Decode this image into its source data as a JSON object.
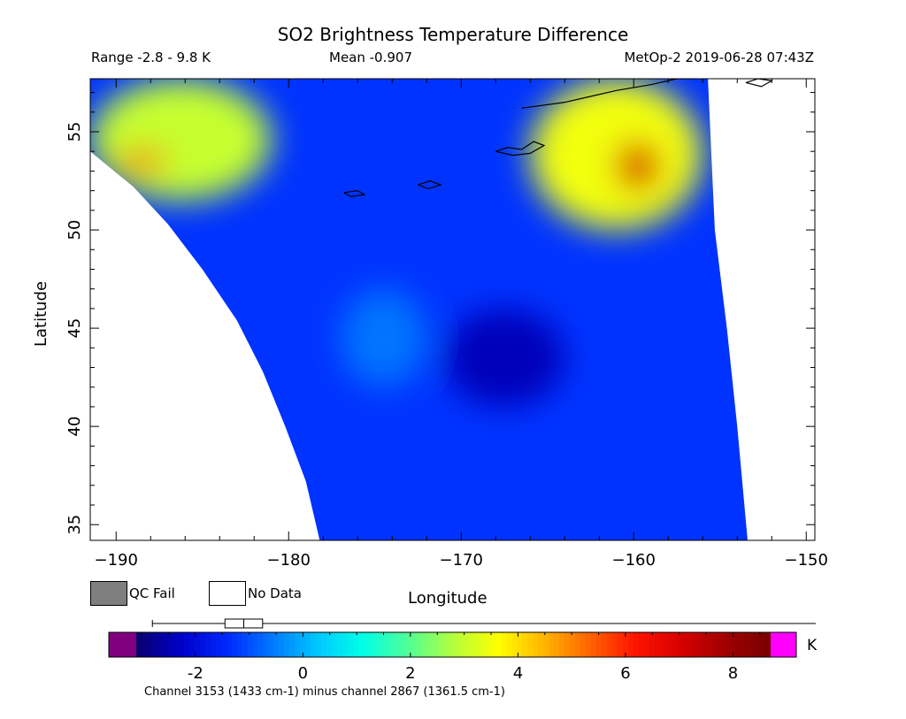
{
  "header": {
    "range": "Range -2.8 - 9.8 K",
    "mean": "Mean -0.907",
    "satellite": "MetOp-2 2019-06-28 07:43Z"
  },
  "legend": {
    "qc_fail": "QC Fail",
    "no_data": "No Data",
    "qc_color": "#7f7f7f",
    "nodata_color": "#ffffff"
  },
  "colorbar": {
    "unit": "K",
    "min": -3.1,
    "max": 8.7,
    "ticks": [
      "-2",
      "0",
      "2",
      "4",
      "6",
      "8"
    ],
    "tick_values": [
      -2,
      0,
      2,
      4,
      6,
      8
    ],
    "underflow_color": "#800080",
    "overflow_color": "#ff00ff",
    "colors": [
      "#0a006e",
      "#0000c8",
      "#0028ff",
      "#0078ff",
      "#00c8ff",
      "#00ffe6",
      "#50ff96",
      "#b4ff3c",
      "#ffff00",
      "#ffb400",
      "#ff6400",
      "#ff1400",
      "#d70000",
      "#a00000",
      "#780000"
    ],
    "boxplot": {
      "min": -2.8,
      "q1": -1.45,
      "median": -1.1,
      "q3": -0.75,
      "max": 9.8
    }
  },
  "footnote": "Channel 3153 (1433 cm-1) minus channel 2867 (1361.5 cm-1)",
  "chart_data": {
    "type": "heatmap",
    "title": "SO2 Brightness Temperature Difference",
    "xlabel": "Longitude",
    "ylabel": "Latitude",
    "xlim": [
      -191.5,
      -149.5
    ],
    "ylim": [
      34.2,
      57.7
    ],
    "xticks": [
      -190,
      -180,
      -170,
      -160,
      -150
    ],
    "xtick_labels": [
      "−190",
      "−180",
      "−170",
      "−160",
      "−150"
    ],
    "yticks": [
      35,
      40,
      45,
      50,
      55
    ],
    "ytick_labels": [
      "35",
      "40",
      "45",
      "50",
      "55"
    ],
    "swath_west_edge": [
      [
        -191.5,
        54.0
      ],
      [
        -189.0,
        52.2
      ],
      [
        -187.0,
        50.3
      ],
      [
        -185.0,
        48.0
      ],
      [
        -183.0,
        45.4
      ],
      [
        -181.5,
        42.8
      ],
      [
        -180.2,
        40.0
      ],
      [
        -179.0,
        37.2
      ],
      [
        -178.2,
        34.2
      ]
    ],
    "swath_east_edge": [
      [
        -155.7,
        57.7
      ],
      [
        -155.3,
        50.0
      ],
      [
        -154.6,
        45.0
      ],
      [
        -154.0,
        40.0
      ],
      [
        -153.4,
        34.2
      ]
    ],
    "background_value": -1.3,
    "regions": [
      {
        "name": "northwest-plume",
        "lon": [
          -191.5,
          -181.0
        ],
        "lat": [
          51.5,
          57.7
        ],
        "value": 3.0
      },
      {
        "name": "northwest-core",
        "lon": [
          -190.0,
          -187.0
        ],
        "lat": [
          53.0,
          54.0
        ],
        "value": 6.0
      },
      {
        "name": "northeast-plume",
        "lon": [
          -166.0,
          -156.0
        ],
        "lat": [
          50.0,
          57.7
        ],
        "value": 3.5
      },
      {
        "name": "northeast-core",
        "lon": [
          -161.0,
          -158.5
        ],
        "lat": [
          52.0,
          54.5
        ],
        "value": 7.0
      },
      {
        "name": "cyclone-center",
        "lon": [
          -171.0,
          -164.0
        ],
        "lat": [
          41.0,
          46.0
        ],
        "value": -2.4
      },
      {
        "name": "cyclone-west",
        "lon": [
          -177.0,
          -172.0
        ],
        "lat": [
          42.0,
          47.0
        ],
        "value": -0.6
      }
    ],
    "coastlines": [
      [
        [
          -166.5,
          56.2
        ],
        [
          -164.0,
          56.5
        ],
        [
          -162.5,
          56.8
        ],
        [
          -161.0,
          57.1
        ],
        [
          -159.0,
          57.4
        ],
        [
          -157.5,
          57.7
        ],
        [
          -156.5,
          57.7
        ]
      ],
      [
        [
          -168.0,
          54.0
        ],
        [
          -167.3,
          54.2
        ],
        [
          -166.5,
          54.1
        ],
        [
          -165.8,
          54.5
        ],
        [
          -165.2,
          54.3
        ],
        [
          -166.0,
          53.9
        ],
        [
          -167.0,
          53.8
        ],
        [
          -168.0,
          54.0
        ]
      ],
      [
        [
          -172.5,
          52.3
        ],
        [
          -171.8,
          52.5
        ],
        [
          -171.2,
          52.3
        ],
        [
          -171.9,
          52.1
        ],
        [
          -172.5,
          52.3
        ]
      ],
      [
        [
          -176.8,
          51.9
        ],
        [
          -176.0,
          52.0
        ],
        [
          -175.6,
          51.8
        ],
        [
          -176.4,
          51.7
        ],
        [
          -176.8,
          51.9
        ]
      ],
      [
        [
          -153.5,
          57.5
        ],
        [
          -152.8,
          57.7
        ],
        [
          -152.0,
          57.6
        ],
        [
          -152.6,
          57.3
        ],
        [
          -153.5,
          57.5
        ]
      ]
    ]
  }
}
